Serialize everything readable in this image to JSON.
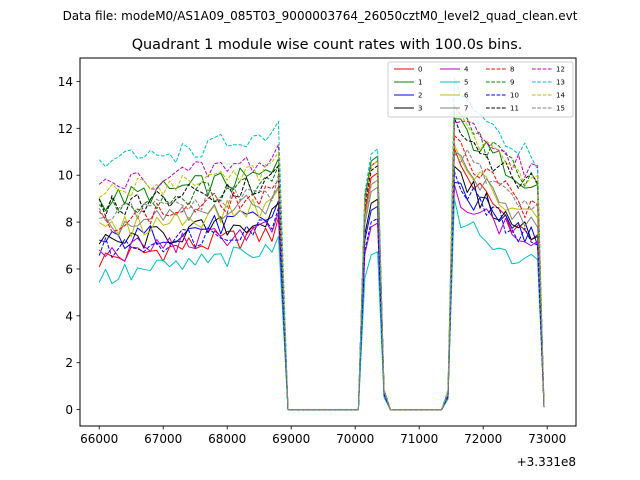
{
  "chart_data": {
    "type": "line",
    "suptitle": "Data file: modeM0/AS1A09_085T03_9000003764_26050cztM0_level2_quad_clean.evt",
    "title": "Quadrant 1 module wise count rates with 100.0s bins.",
    "xlabel": "",
    "ylabel": "",
    "offset_text": "+3.331e8",
    "xlim": [
      65700,
      73450
    ],
    "ylim": [
      -0.7,
      15.0
    ],
    "x_ticks": [
      66000,
      67000,
      68000,
      69000,
      70000,
      71000,
      72000,
      73000
    ],
    "x_tick_labels": [
      "66000",
      "67000",
      "68000",
      "69000",
      "70000",
      "71000",
      "72000",
      "73000"
    ],
    "y_ticks": [
      0,
      2,
      4,
      6,
      8,
      10,
      12,
      14
    ],
    "y_tick_labels": [
      "0",
      "2",
      "4",
      "6",
      "8",
      "10",
      "12",
      "14"
    ],
    "legend_position": "upper-right",
    "legend_columns": 4,
    "segments": [
      {
        "x_start": 66000,
        "x_step": 100,
        "n": 29,
        "gap_after": true
      },
      {
        "x_start": 70150,
        "x_step": 100,
        "n": 4,
        "gap_after": true
      },
      {
        "x_start": 71450,
        "x_step": 100,
        "n": 16,
        "gap_after": false
      }
    ],
    "series": [
      {
        "name": "0",
        "color": "#ff0000",
        "dash": "solid",
        "level": 6.4,
        "peak1": 9.9,
        "peak2": 10.9,
        "end": 6.9
      },
      {
        "name": "1",
        "color": "#008000",
        "dash": "solid",
        "level": 8.9,
        "peak1": 10.6,
        "peak2": 12.4,
        "end": 9.4
      },
      {
        "name": "2",
        "color": "#0000ff",
        "dash": "solid",
        "level": 7.1,
        "peak1": 8.5,
        "peak2": 9.8,
        "end": 7.1
      },
      {
        "name": "3",
        "color": "#000000",
        "dash": "solid",
        "level": 7.0,
        "peak1": 8.8,
        "peak2": 10.2,
        "end": 7.2
      },
      {
        "name": "4",
        "color": "#bf00bf",
        "dash": "solid",
        "level": 6.6,
        "peak1": 7.8,
        "peak2": 9.5,
        "end": 6.8
      },
      {
        "name": "5",
        "color": "#00bfbf",
        "dash": "solid",
        "level": 5.6,
        "peak1": 6.6,
        "peak2": 8.5,
        "end": 6.0
      },
      {
        "name": "6",
        "color": "#bfbf00",
        "dash": "solid",
        "level": 7.6,
        "peak1": 9.6,
        "peak2": 11.0,
        "end": 7.9
      },
      {
        "name": "7",
        "color": "#808080",
        "dash": "solid",
        "level": 7.7,
        "peak1": 9.3,
        "peak2": 11.0,
        "end": 7.6
      },
      {
        "name": "8",
        "color": "#ff0000",
        "dash": "dashed",
        "level": 8.0,
        "peak1": 10.4,
        "peak2": 11.5,
        "end": 8.1
      },
      {
        "name": "9",
        "color": "#008000",
        "dash": "dashed",
        "level": 8.6,
        "peak1": 10.4,
        "peak2": 12.9,
        "end": 9.3
      },
      {
        "name": "10",
        "color": "#0000ff",
        "dash": "dashed",
        "level": 6.8,
        "peak1": 8.0,
        "peak2": 10.0,
        "end": 6.9
      },
      {
        "name": "11",
        "color": "#000000",
        "dash": "dashed",
        "level": 8.6,
        "peak1": 10.2,
        "peak2": 12.0,
        "end": 9.3
      },
      {
        "name": "12",
        "color": "#bf00bf",
        "dash": "dashed",
        "level": 9.5,
        "peak1": 10.4,
        "peak2": 12.6,
        "end": 9.9
      },
      {
        "name": "13",
        "color": "#00bfbf",
        "dash": "dashed",
        "level": 10.5,
        "peak1": 10.9,
        "peak2": 14.0,
        "end": 10.5
      },
      {
        "name": "14",
        "color": "#bfbf00",
        "dash": "dashed",
        "level": 9.2,
        "peak1": 10.4,
        "peak2": 12.5,
        "end": 9.6
      },
      {
        "name": "15",
        "color": "#808080",
        "dash": "dashed",
        "level": 8.2,
        "peak1": 9.6,
        "peak2": 11.3,
        "end": 8.3
      }
    ]
  }
}
